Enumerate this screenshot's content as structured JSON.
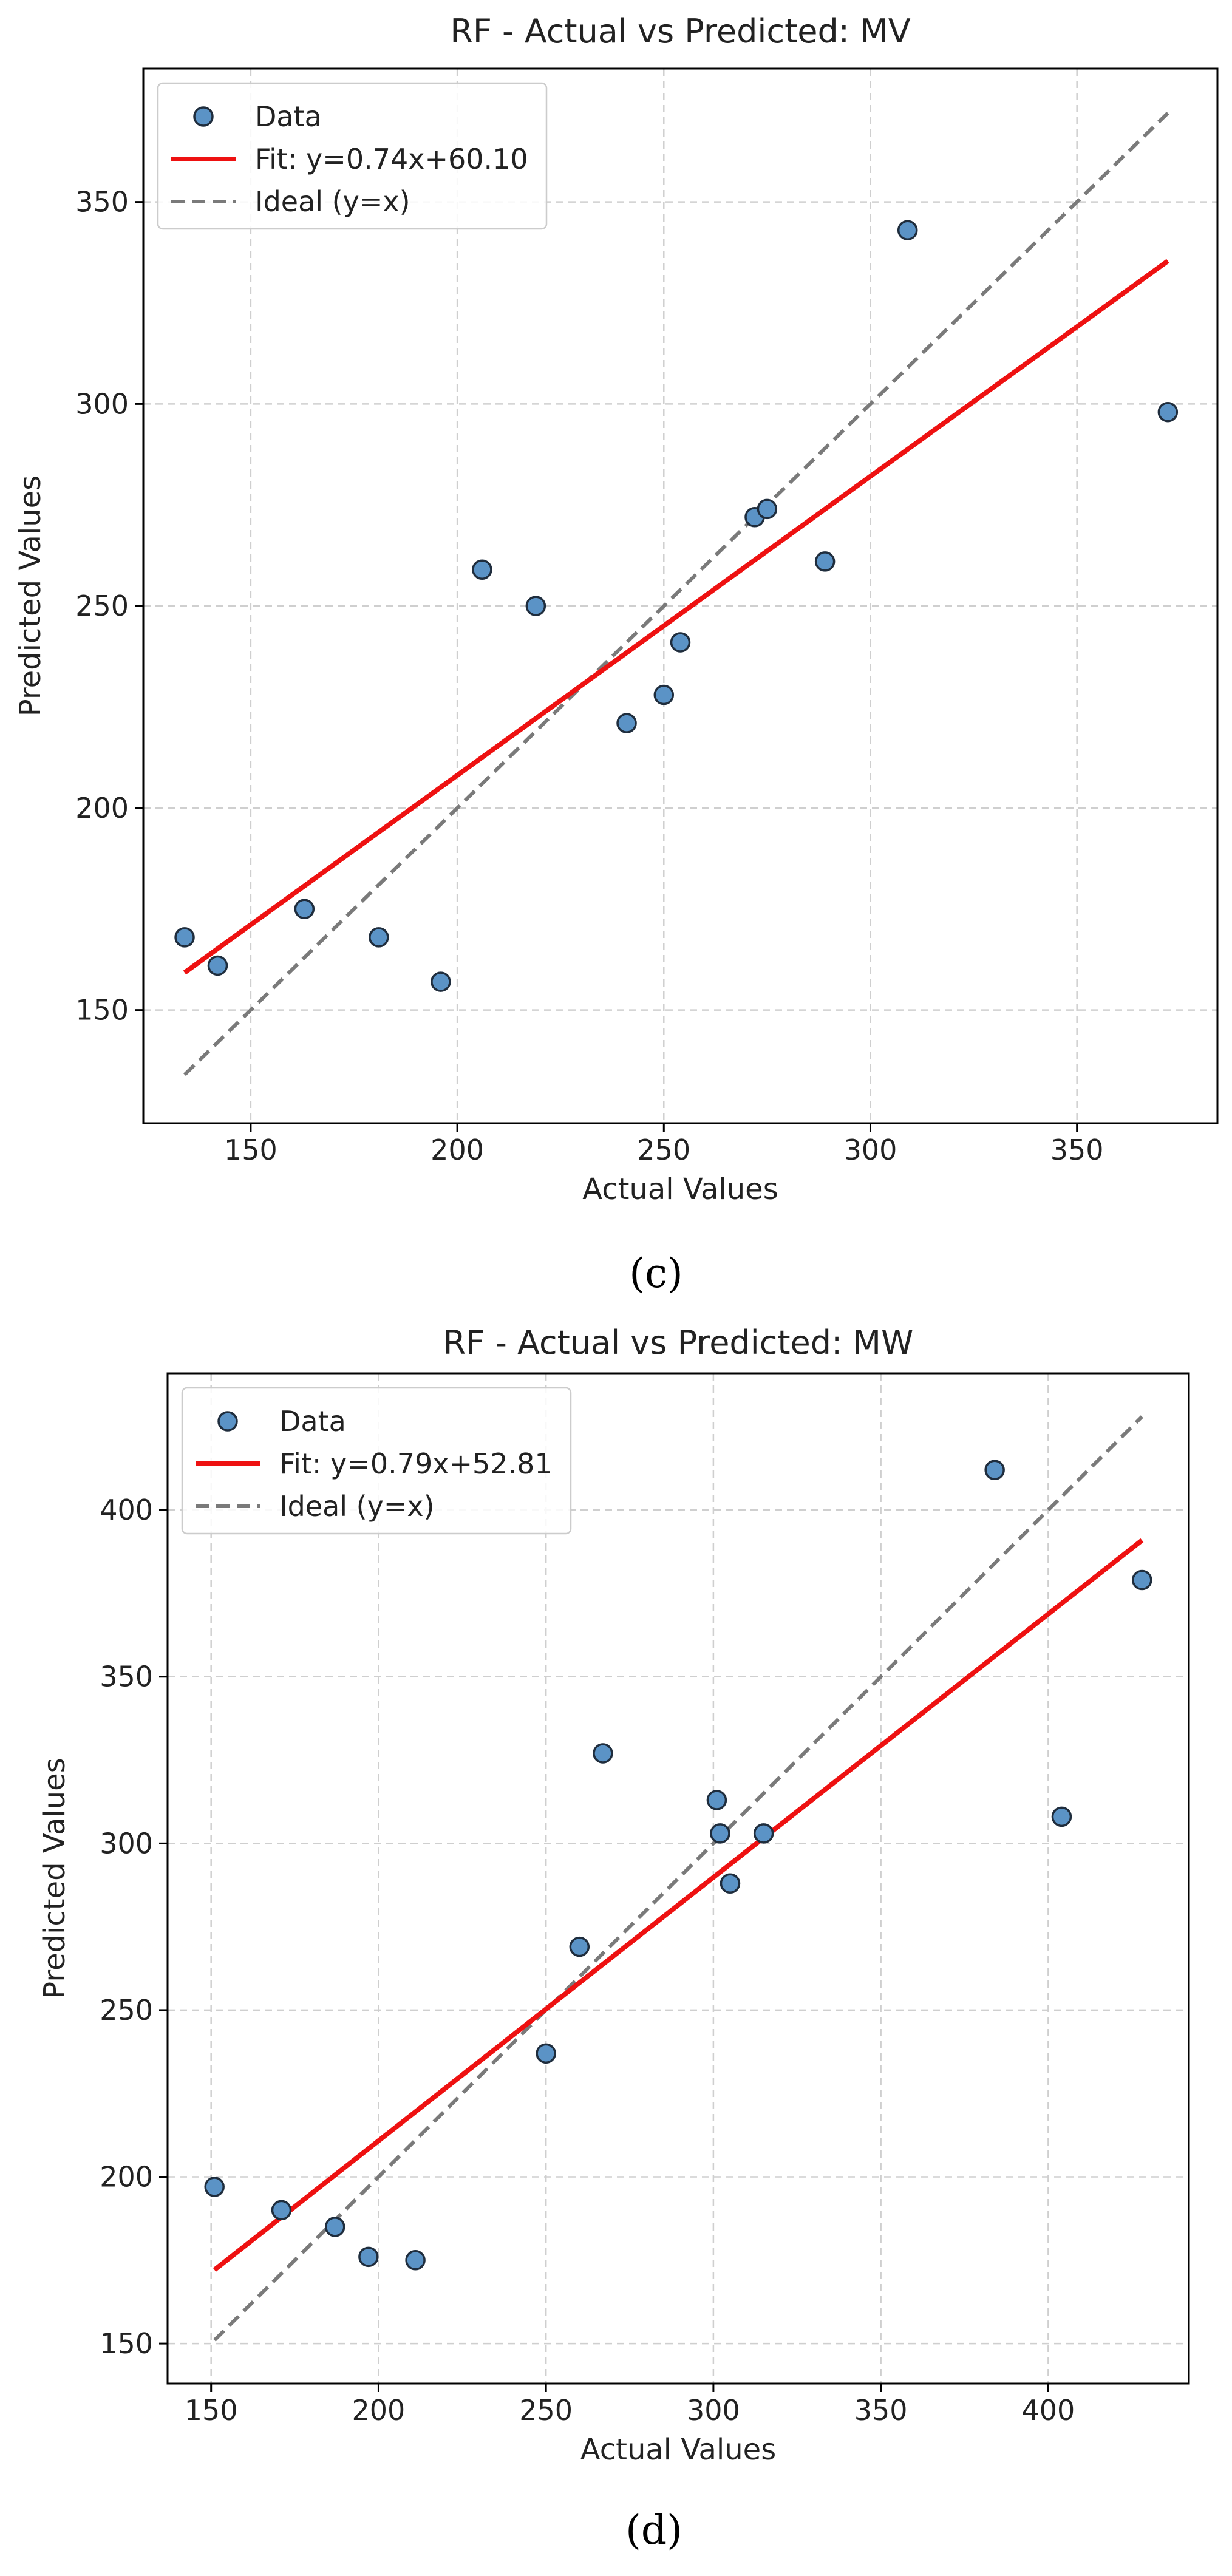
{
  "chart_data": [
    {
      "type": "scatter",
      "panel_label": "(c)",
      "title": "RF - Actual vs Predicted: MV",
      "xlabel": "Actual Values",
      "ylabel": "Predicted Values",
      "xlim": [
        124,
        384
      ],
      "ylim": [
        122,
        383
      ],
      "xticks": [
        150,
        200,
        250,
        300,
        350
      ],
      "yticks": [
        150,
        200,
        250,
        300,
        350
      ],
      "grid": true,
      "legend_position": "top-left",
      "legend": [
        "Data",
        "Fit: y=0.74x+60.10",
        "Ideal (y=x)"
      ],
      "colors": {
        "points": "#5b93c6",
        "point_edge": "#1f2d3d",
        "fit": "#ee1111",
        "ideal": "#7a7a7a",
        "grid": "#cfcfcf"
      },
      "series": [
        {
          "name": "Data",
          "x": [
            134,
            142,
            163,
            181,
            196,
            206,
            219,
            241,
            250,
            254,
            272,
            275,
            289,
            309,
            372
          ],
          "y": [
            168,
            161,
            175,
            168,
            157,
            259,
            250,
            221,
            228,
            241,
            272,
            274,
            261,
            343,
            298
          ]
        }
      ],
      "fit": {
        "slope": 0.74,
        "intercept": 60.1,
        "x_range": [
          134,
          372
        ]
      },
      "ideal": {
        "x_range": [
          134,
          372
        ]
      }
    },
    {
      "type": "scatter",
      "panel_label": "(d)",
      "title": "RF - Actual vs Predicted: MW",
      "xlabel": "Actual Values",
      "ylabel": "Predicted Values",
      "xlim": [
        137,
        442
      ],
      "ylim": [
        138,
        441
      ],
      "xticks": [
        150,
        200,
        250,
        300,
        350,
        400
      ],
      "yticks": [
        150,
        200,
        250,
        300,
        350,
        400
      ],
      "grid": true,
      "legend_position": "top-left",
      "legend": [
        "Data",
        "Fit: y=0.79x+52.81",
        "Ideal (y=x)"
      ],
      "colors": {
        "points": "#5b93c6",
        "point_edge": "#1f2d3d",
        "fit": "#ee1111",
        "ideal": "#7a7a7a",
        "grid": "#cfcfcf"
      },
      "series": [
        {
          "name": "Data",
          "x": [
            151,
            171,
            187,
            197,
            211,
            250,
            260,
            267,
            301,
            302,
            305,
            315,
            384,
            404,
            428
          ],
          "y": [
            197,
            190,
            185,
            176,
            175,
            237,
            269,
            327,
            313,
            303,
            288,
            303,
            412,
            308,
            379
          ]
        }
      ],
      "fit": {
        "slope": 0.79,
        "intercept": 52.81,
        "x_range": [
          151,
          428
        ]
      },
      "ideal": {
        "x_range": [
          151,
          428
        ]
      }
    }
  ]
}
